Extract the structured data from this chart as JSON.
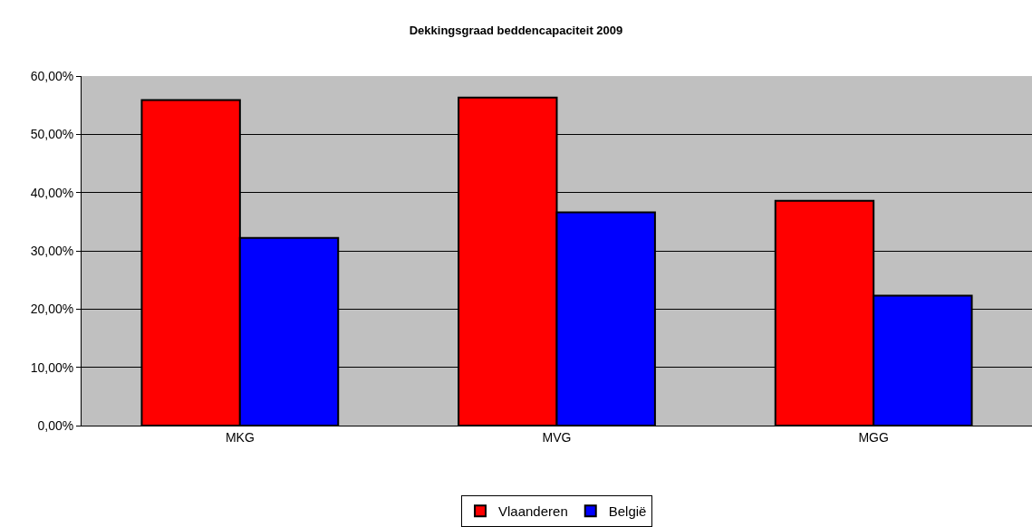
{
  "chart_data": {
    "type": "bar",
    "title": "Dekkingsgraad beddencapaciteit 2009",
    "categories": [
      "MKG",
      "MVG",
      "MGG"
    ],
    "series": [
      {
        "name": "Vlaanderen",
        "color": "#ff0000",
        "values": [
          55.9,
          56.3,
          38.6
        ]
      },
      {
        "name": "België",
        "color": "#0000ff",
        "values": [
          32.2,
          36.6,
          22.3
        ]
      }
    ],
    "ylim": [
      0,
      60
    ],
    "yticks": [
      {
        "value": 0,
        "label": "0,00%"
      },
      {
        "value": 10,
        "label": "10,00%"
      },
      {
        "value": 20,
        "label": "20,00%"
      },
      {
        "value": 30,
        "label": "30,00%"
      },
      {
        "value": 40,
        "label": "40,00%"
      },
      {
        "value": 50,
        "label": "50,00%"
      },
      {
        "value": 60,
        "label": "60,00%"
      }
    ],
    "grid": "y",
    "legend": "bottom"
  }
}
